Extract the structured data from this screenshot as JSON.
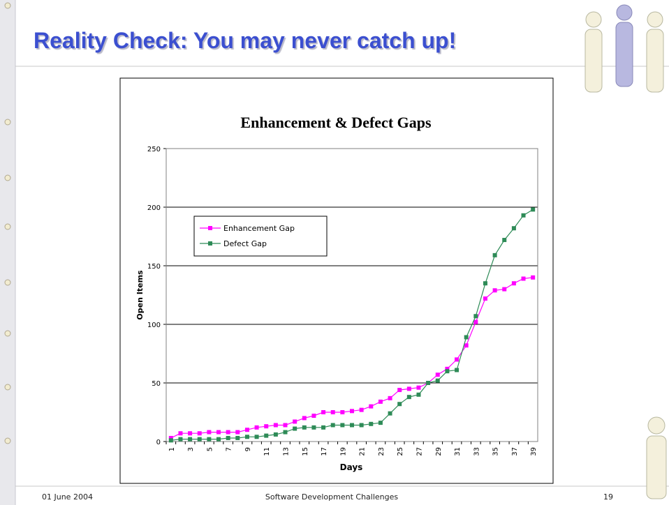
{
  "slide": {
    "title": "Reality Check: You may never catch up!",
    "footer_date": "01 June 2004",
    "footer_title": "Software Development Challenges",
    "page": "19"
  },
  "chart_data": {
    "type": "line",
    "title": "Enhancement & Defect Gaps",
    "x_label": "Days",
    "y_label": "Open Items",
    "categories": [
      1,
      null,
      3,
      null,
      5,
      null,
      7,
      null,
      9,
      null,
      11,
      null,
      13,
      null,
      15,
      null,
      17,
      null,
      19,
      null,
      21,
      null,
      23,
      null,
      25,
      null,
      27,
      null,
      29,
      null,
      31,
      null,
      33,
      null,
      35,
      null,
      37,
      null,
      39
    ],
    "series": [
      {
        "name": "Enhancement Gap",
        "color": "#ff00ff",
        "values": [
          3,
          7,
          7,
          7,
          8,
          8,
          8,
          8,
          10,
          12,
          13,
          14,
          14,
          17,
          20,
          22,
          25,
          25,
          25,
          26,
          27,
          30,
          34,
          37,
          44,
          45,
          46,
          50,
          57,
          62,
          70,
          82,
          102,
          122,
          129,
          130,
          135,
          139,
          140
        ]
      },
      {
        "name": "Defect Gap",
        "color": "#2e8b57",
        "values": [
          1,
          2,
          2,
          2,
          2,
          2,
          3,
          3,
          4,
          4,
          5,
          6,
          8,
          11,
          12,
          12,
          12,
          14,
          14,
          14,
          14,
          15,
          16,
          24,
          32,
          38,
          40,
          50,
          52,
          60,
          61,
          89,
          107,
          135,
          159,
          172,
          182,
          193,
          198
        ]
      }
    ],
    "ylim": [
      0,
      250
    ],
    "yticks": [
      0,
      50,
      100,
      150,
      200,
      250
    ],
    "grid": true,
    "legend": "upper-left"
  }
}
